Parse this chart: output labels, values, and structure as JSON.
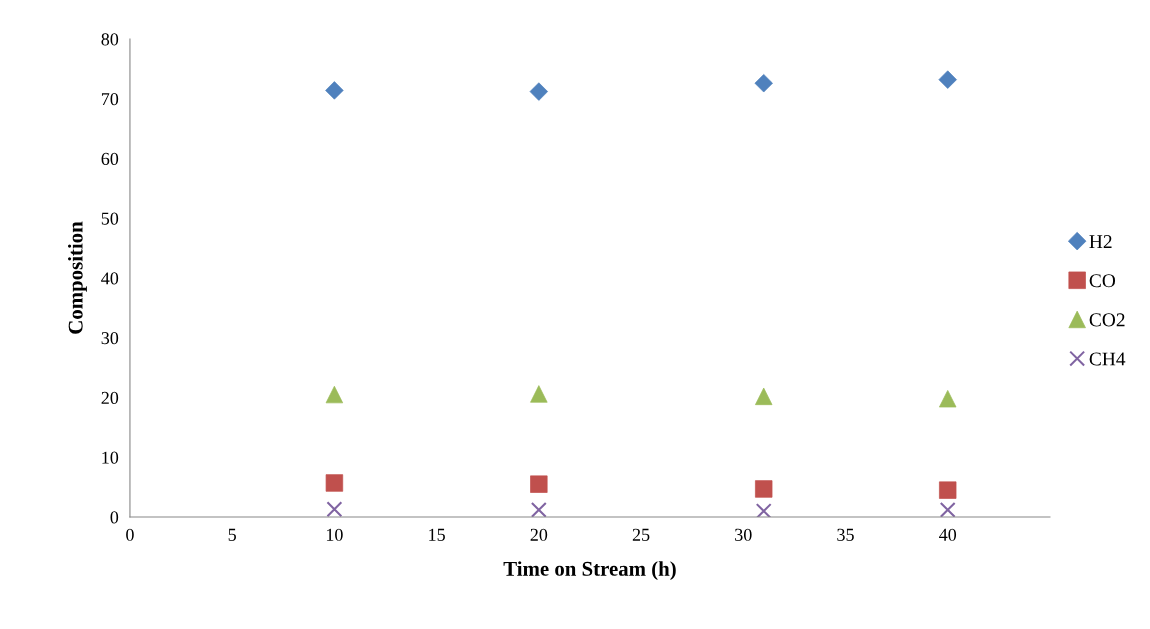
{
  "chart_data": {
    "type": "scatter",
    "xlabel": "Time on Stream (h)",
    "ylabel": "Composition",
    "x": [
      10,
      20,
      31,
      40
    ],
    "series": [
      {
        "name": "H2",
        "color": "#4f81bd",
        "marker": "diamond",
        "values": [
          71.4,
          71.2,
          72.6,
          73.2
        ]
      },
      {
        "name": "CO",
        "color": "#c0504d",
        "marker": "square",
        "values": [
          5.7,
          5.5,
          4.7,
          4.5
        ]
      },
      {
        "name": "CO2",
        "color": "#9bbb59",
        "marker": "triangle",
        "values": [
          20.5,
          20.6,
          20.2,
          19.8
        ]
      },
      {
        "name": "CH4",
        "color": "#8064a2",
        "marker": "cross",
        "values": [
          1.3,
          1.2,
          1.0,
          1.2
        ]
      }
    ],
    "xlim": [
      0,
      45
    ],
    "ylim": [
      0,
      80
    ],
    "xticks": [
      0,
      5,
      10,
      15,
      20,
      25,
      30,
      35,
      40
    ],
    "yticks": [
      0,
      10,
      20,
      30,
      40,
      50,
      60,
      70,
      80
    ],
    "grid": false,
    "legend": "right"
  }
}
